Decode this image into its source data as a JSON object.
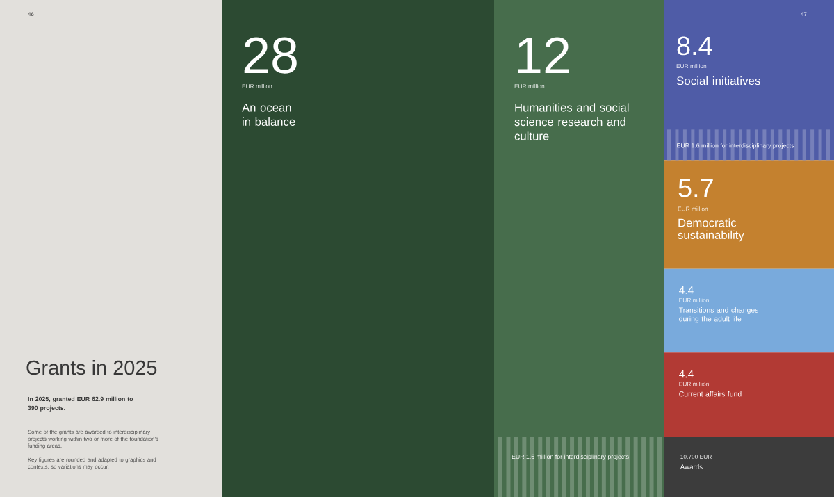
{
  "chart_data": {
    "type": "other",
    "title": "Grants in 2025",
    "subtitle": "In 2025, granted EUR 62.9 million to 390 projects.",
    "categories": [
      "An ocean in balance",
      "Humanities and social science research and culture",
      "Social initiatives",
      "Democratic sustainability",
      "Transitions and changes during the adult life",
      "Current affairs fund",
      "Awards"
    ],
    "values": [
      28,
      12,
      8.4,
      5.7,
      4.4,
      4.4,
      null
    ],
    "colors": [
      "#2c4a32",
      "#476d4c",
      "#4f5ca7",
      "#c4812f",
      "#79aadc",
      "#b23a34",
      "#3c3c3c"
    ],
    "data_labels": true,
    "annotations": [
      "EUR million",
      "EUR million",
      "EUR million",
      "EUR million",
      "EUR million",
      "EUR million",
      "10,700 EUR",
      "EUR 1.6 million for interdisciplinary projects",
      "EUR 1.6 million for interdisciplinary projects",
      "Some of the grants are awarded to interdisciplinary projects working within two or more of the foundation’s funding areas.",
      "Key figures are rounded and adapted to graphics and contexts, so variations may occur.",
      "46",
      "47"
    ]
  }
}
